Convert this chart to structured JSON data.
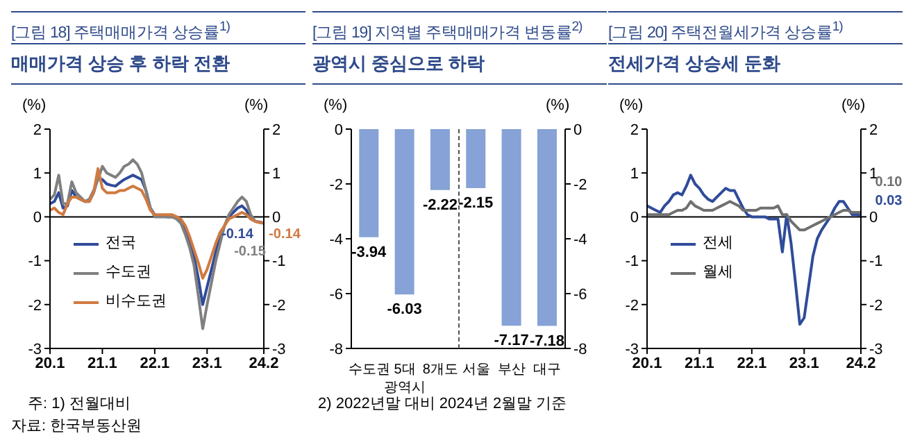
{
  "chart_data": [
    {
      "type": "line",
      "title": "[그림 18] 주택매매가격  상승률$^{1)}$",
      "subtitle": "매매가격 상승 후 하락 전환",
      "ylabel": "(%)",
      "y2label": "(%)",
      "x": [
        "2020-01",
        "2020-02",
        "2020-03",
        "2020-04",
        "2020-05",
        "2020-06",
        "2020-07",
        "2020-08",
        "2020-09",
        "2020-10",
        "2020-11",
        "2020-12",
        "2021-01",
        "2021-02",
        "2021-03",
        "2021-04",
        "2021-05",
        "2021-06",
        "2021-07",
        "2021-08",
        "2021-09",
        "2021-10",
        "2021-11",
        "2021-12",
        "2022-01",
        "2022-02",
        "2022-03",
        "2022-04",
        "2022-05",
        "2022-06",
        "2022-07",
        "2022-08",
        "2022-09",
        "2022-10",
        "2022-11",
        "2022-12",
        "2023-01",
        "2023-02",
        "2023-03",
        "2023-04",
        "2023-05",
        "2023-06",
        "2023-07",
        "2023-08",
        "2023-09",
        "2023-10",
        "2023-11",
        "2023-12",
        "2024-01",
        "2024-02"
      ],
      "series": [
        {
          "name": "전국",
          "color": "#2f4b9a",
          "values": [
            0.3,
            0.35,
            0.55,
            0.2,
            0.25,
            0.6,
            0.45,
            0.4,
            0.35,
            0.35,
            0.55,
            0.9,
            0.85,
            0.75,
            0.72,
            0.7,
            0.78,
            0.85,
            0.9,
            0.95,
            0.9,
            0.85,
            0.6,
            0.2,
            0.05,
            0.02,
            0.01,
            0.0,
            0.0,
            0.0,
            -0.1,
            -0.3,
            -0.6,
            -0.9,
            -1.4,
            -2.0,
            -1.6,
            -1.2,
            -0.8,
            -0.45,
            -0.2,
            0.0,
            0.1,
            0.2,
            0.25,
            0.15,
            -0.05,
            -0.1,
            -0.12,
            -0.14
          ],
          "value_labels": [
            null,
            null,
            null,
            null,
            null,
            null,
            null,
            null,
            null,
            null,
            null,
            null,
            null,
            null,
            null,
            null,
            null,
            null,
            null,
            null,
            null,
            null,
            null,
            null,
            null,
            null,
            null,
            null,
            null,
            null,
            null,
            null,
            null,
            null,
            null,
            null,
            null,
            null,
            null,
            null,
            null,
            null,
            null,
            null,
            null,
            null,
            null,
            null,
            null,
            "-0.14"
          ]
        },
        {
          "name": "수도권",
          "color": "#808080",
          "values": [
            0.4,
            0.5,
            0.95,
            0.3,
            0.3,
            0.8,
            0.55,
            0.45,
            0.35,
            0.4,
            0.6,
            0.85,
            1.15,
            1.0,
            0.95,
            0.9,
            1.0,
            1.15,
            1.2,
            1.3,
            1.2,
            1.0,
            0.6,
            0.2,
            0.0,
            0.0,
            0.0,
            0.0,
            0.0,
            -0.05,
            -0.15,
            -0.4,
            -0.7,
            -1.1,
            -1.8,
            -2.55,
            -2.0,
            -1.5,
            -1.0,
            -0.6,
            -0.2,
            0.05,
            0.2,
            0.35,
            0.45,
            0.35,
            0.05,
            -0.1,
            -0.13,
            -0.15
          ],
          "value_labels": [
            null,
            null,
            null,
            null,
            null,
            null,
            null,
            null,
            null,
            null,
            null,
            null,
            null,
            null,
            null,
            null,
            null,
            null,
            null,
            null,
            null,
            null,
            null,
            null,
            null,
            null,
            null,
            null,
            null,
            null,
            null,
            null,
            null,
            null,
            null,
            null,
            null,
            null,
            null,
            null,
            null,
            null,
            null,
            null,
            null,
            null,
            null,
            null,
            null,
            "-0.15"
          ]
        },
        {
          "name": "비수도권",
          "color": "#d07a40",
          "values": [
            0.15,
            0.2,
            0.1,
            0.05,
            0.3,
            0.45,
            0.45,
            0.4,
            0.35,
            0.35,
            0.55,
            1.1,
            0.65,
            0.55,
            0.55,
            0.55,
            0.6,
            0.6,
            0.65,
            0.7,
            0.65,
            0.6,
            0.4,
            0.15,
            0.05,
            0.05,
            0.05,
            0.05,
            0.05,
            0.0,
            -0.05,
            -0.2,
            -0.45,
            -0.75,
            -1.05,
            -1.4,
            -1.2,
            -0.9,
            -0.6,
            -0.35,
            -0.2,
            -0.05,
            0.0,
            0.05,
            0.1,
            0.05,
            -0.05,
            -0.1,
            -0.13,
            -0.14
          ],
          "value_labels": [
            null,
            null,
            null,
            null,
            null,
            null,
            null,
            null,
            null,
            null,
            null,
            null,
            null,
            null,
            null,
            null,
            null,
            null,
            null,
            null,
            null,
            null,
            null,
            null,
            null,
            null,
            null,
            null,
            null,
            null,
            null,
            null,
            null,
            null,
            null,
            null,
            null,
            null,
            null,
            null,
            null,
            null,
            null,
            null,
            null,
            null,
            null,
            null,
            null,
            "-0.14"
          ]
        }
      ],
      "xlim": [
        "2020-01",
        "2024-02"
      ],
      "xticks": [
        {
          "value": "2020-01",
          "label": "20.1"
        },
        {
          "value": "2021-01",
          "label": "21.1"
        },
        {
          "value": "2022-01",
          "label": "22.1"
        },
        {
          "value": "2023-01",
          "label": "23.1"
        },
        {
          "value": "2024-02",
          "label": "24.2"
        }
      ],
      "ylim": [
        -3,
        2
      ],
      "yticks": [
        -3,
        -2,
        -1,
        0,
        1,
        2
      ],
      "y2lim": [
        -3,
        2
      ],
      "y2ticks": [
        -3,
        -2,
        -1,
        0,
        1,
        2
      ],
      "ref_lines": [
        {
          "axis": "y",
          "value": 0,
          "color": "#000000"
        }
      ],
      "grid": false,
      "legend": "bottom left",
      "marker": "none",
      "line_style": "solid",
      "annotations": [
        "주: 1) 전월대비",
        "자료: 한국부동산원"
      ]
    },
    {
      "type": "bar",
      "title": "[그림 19] 지역별 주택매매가격 변동률$^{2)}$",
      "subtitle": "광역시 중심으로 하락",
      "ylabel": "(%)",
      "y2label": "(%)",
      "categories": [
        "수도권",
        "5대 광역시",
        "8개도",
        "서울",
        "부산",
        "대구"
      ],
      "values": [
        -3.94,
        -6.03,
        -2.22,
        -2.15,
        -7.17,
        -7.18
      ],
      "color": "#86a2d6",
      "ylim": [
        -8,
        0
      ],
      "yticks": [
        -8,
        -6,
        -4,
        -2,
        0
      ],
      "y2lim": [
        -8,
        0
      ],
      "y2ticks": [
        -8,
        -6,
        -4,
        -2,
        0
      ],
      "data_labels": true,
      "annotations": [
        "2) 2022년말 대비 2024년 2월말 기준"
      ]
    },
    {
      "type": "line",
      "title": "[그림 20] 주택전월세가격 상승률$^{1)}$",
      "subtitle": "전세가격 상승세 둔화",
      "ylabel": "(%)",
      "y2label": "(%)",
      "x": [
        "2020-01",
        "2020-02",
        "2020-03",
        "2020-04",
        "2020-05",
        "2020-06",
        "2020-07",
        "2020-08",
        "2020-09",
        "2020-10",
        "2020-11",
        "2020-12",
        "2021-01",
        "2021-02",
        "2021-03",
        "2021-04",
        "2021-05",
        "2021-06",
        "2021-07",
        "2021-08",
        "2021-09",
        "2021-10",
        "2021-11",
        "2021-12",
        "2022-01",
        "2022-02",
        "2022-03",
        "2022-04",
        "2022-05",
        "2022-06",
        "2022-07",
        "2022-08",
        "2022-09",
        "2022-10",
        "2022-11",
        "2022-12",
        "2023-01",
        "2023-02",
        "2023-03",
        "2023-04",
        "2023-05",
        "2023-06",
        "2023-07",
        "2023-08",
        "2023-09",
        "2023-10",
        "2023-11",
        "2023-12",
        "2024-01",
        "2024-02"
      ],
      "series": [
        {
          "name": "전세",
          "color": "#2f4b9a",
          "values": [
            0.25,
            0.2,
            0.15,
            0.1,
            0.25,
            0.35,
            0.5,
            0.55,
            0.5,
            0.7,
            0.95,
            0.75,
            0.65,
            0.5,
            0.4,
            0.35,
            0.45,
            0.55,
            0.65,
            0.6,
            0.6,
            0.4,
            0.2,
            0.05,
            0.0,
            0.0,
            0.0,
            0.0,
            -0.05,
            -0.05,
            -0.05,
            -0.8,
            0.05,
            -0.6,
            -1.5,
            -2.45,
            -2.3,
            -1.6,
            -0.9,
            -0.5,
            -0.3,
            -0.15,
            0.0,
            0.2,
            0.35,
            0.35,
            0.2,
            0.05,
            0.05,
            0.03
          ],
          "value_labels": [
            null,
            null,
            null,
            null,
            null,
            null,
            null,
            null,
            null,
            null,
            null,
            null,
            null,
            null,
            null,
            null,
            null,
            null,
            null,
            null,
            null,
            null,
            null,
            null,
            null,
            null,
            null,
            null,
            null,
            null,
            null,
            null,
            null,
            null,
            null,
            null,
            null,
            null,
            null,
            null,
            null,
            null,
            null,
            null,
            null,
            null,
            null,
            null,
            null,
            "0.03"
          ]
        },
        {
          "name": "월세",
          "color": "#707070",
          "values": [
            0.05,
            0.05,
            0.05,
            0.05,
            0.05,
            0.05,
            0.1,
            0.15,
            0.15,
            0.2,
            0.35,
            0.25,
            0.2,
            0.15,
            0.15,
            0.15,
            0.2,
            0.25,
            0.3,
            0.35,
            0.3,
            0.25,
            0.15,
            0.15,
            0.15,
            0.15,
            0.2,
            0.2,
            0.2,
            0.2,
            0.25,
            0.05,
            0.05,
            -0.1,
            -0.2,
            -0.3,
            -0.3,
            -0.25,
            -0.2,
            -0.15,
            -0.1,
            -0.05,
            0.0,
            0.05,
            0.1,
            0.15,
            0.15,
            0.1,
            0.1,
            0.1
          ],
          "value_labels": [
            null,
            null,
            null,
            null,
            null,
            null,
            null,
            null,
            null,
            null,
            null,
            null,
            null,
            null,
            null,
            null,
            null,
            null,
            null,
            null,
            null,
            null,
            null,
            null,
            null,
            null,
            null,
            null,
            null,
            null,
            null,
            null,
            null,
            null,
            null,
            null,
            null,
            null,
            null,
            null,
            null,
            null,
            null,
            null,
            null,
            null,
            null,
            null,
            null,
            "0.10"
          ]
        }
      ],
      "xlim": [
        "2020-01",
        "2024-02"
      ],
      "xticks": [
        {
          "value": "2020-01",
          "label": "20.1"
        },
        {
          "value": "2021-01",
          "label": "21.1"
        },
        {
          "value": "2022-01",
          "label": "22.1"
        },
        {
          "value": "2023-01",
          "label": "23.1"
        },
        {
          "value": "2024-02",
          "label": "24.2"
        }
      ],
      "ylim": [
        -3,
        2
      ],
      "yticks": [
        -3,
        -2,
        -1,
        0,
        1,
        2
      ],
      "y2lim": [
        -3,
        2
      ],
      "y2ticks": [
        -3,
        -2,
        -1,
        0,
        1,
        2
      ],
      "ref_lines": [
        {
          "axis": "y",
          "value": 0,
          "color": "#000000"
        }
      ],
      "grid": false,
      "legend": "bottom left",
      "marker": "none",
      "line_style": "solid"
    }
  ]
}
